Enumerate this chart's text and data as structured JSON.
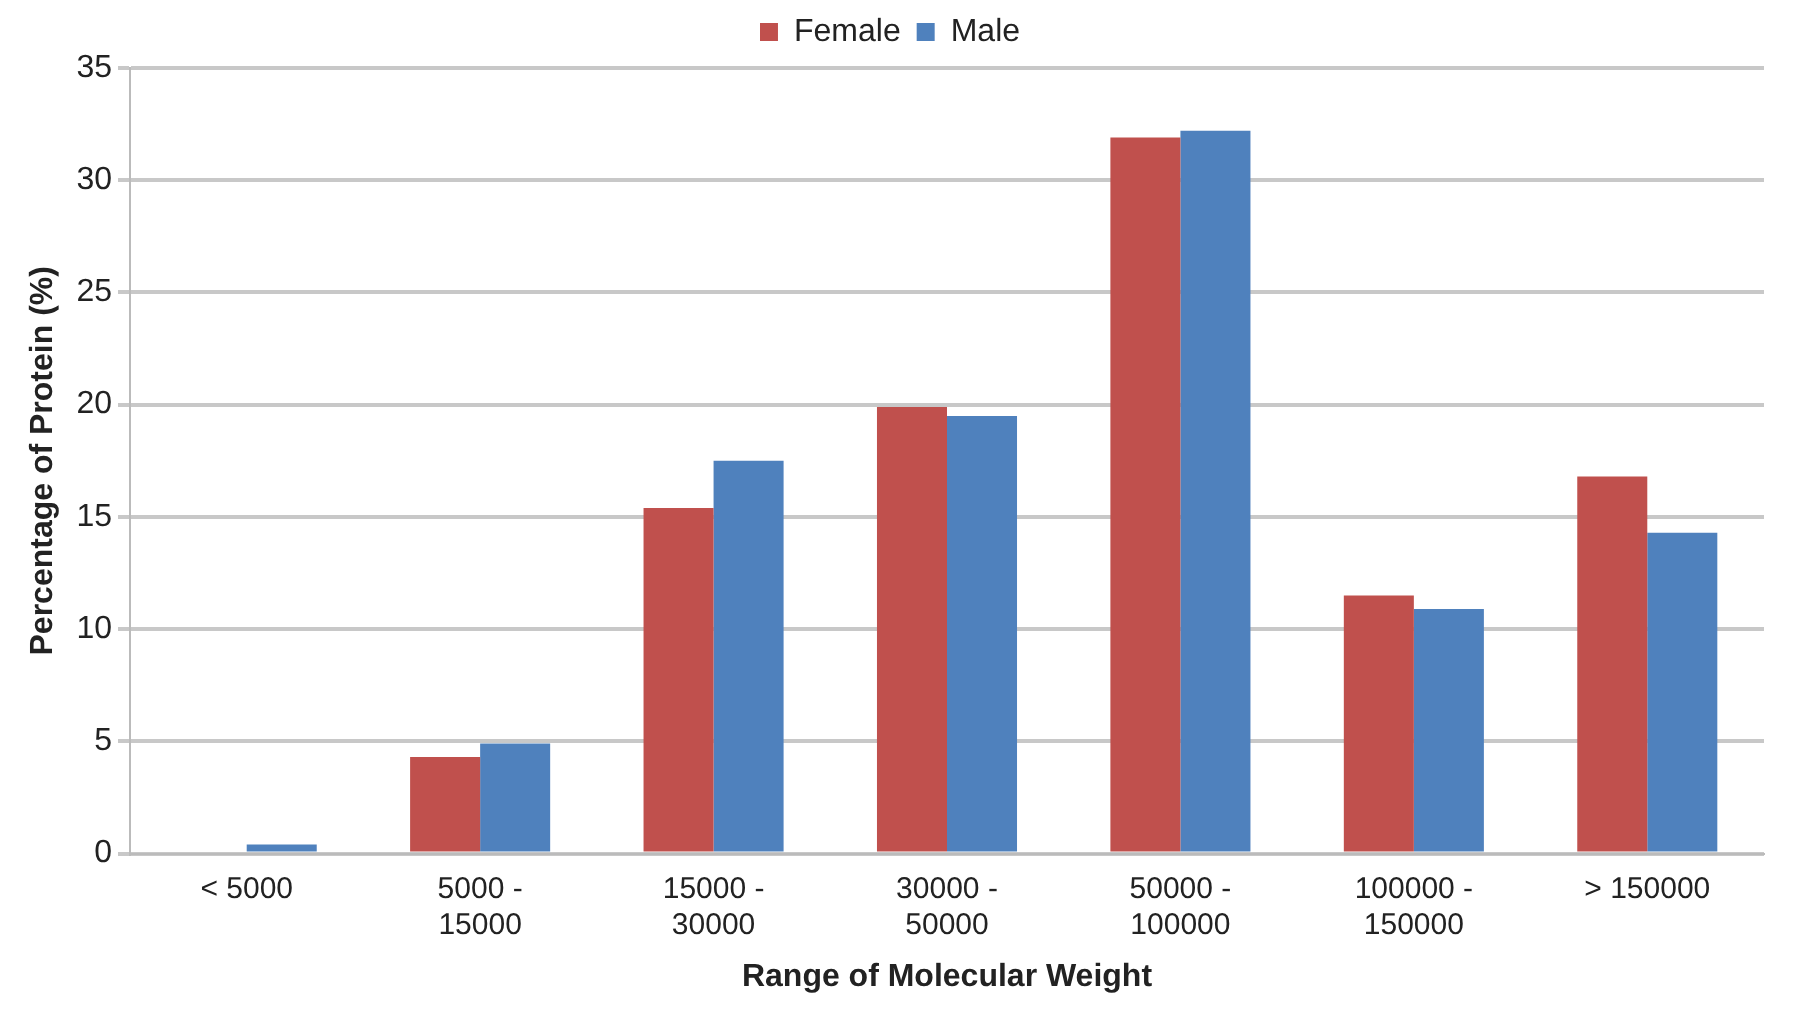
{
  "chart_data": {
    "type": "bar",
    "xlabel": "Range of Molecular Weight",
    "ylabel": "Percentage of Protein (%)",
    "categories": [
      "< 5000",
      "5000 - 15000",
      "15000 - 30000",
      "30000 - 50000",
      "50000 - 100000",
      "100000 - 150000",
      "> 150000"
    ],
    "series": [
      {
        "name": "Female",
        "color": "#c0504d",
        "values": [
          0,
          4.3,
          15.4,
          19.9,
          31.9,
          11.5,
          16.8
        ]
      },
      {
        "name": "Male",
        "color": "#4f81bd",
        "values": [
          0.4,
          4.9,
          17.5,
          19.5,
          32.2,
          10.9,
          14.3
        ]
      }
    ],
    "ylim": [
      0,
      35
    ],
    "yticks": [
      0,
      5,
      10,
      15,
      20,
      25,
      30,
      35
    ],
    "grid": "y",
    "legend": "top"
  }
}
